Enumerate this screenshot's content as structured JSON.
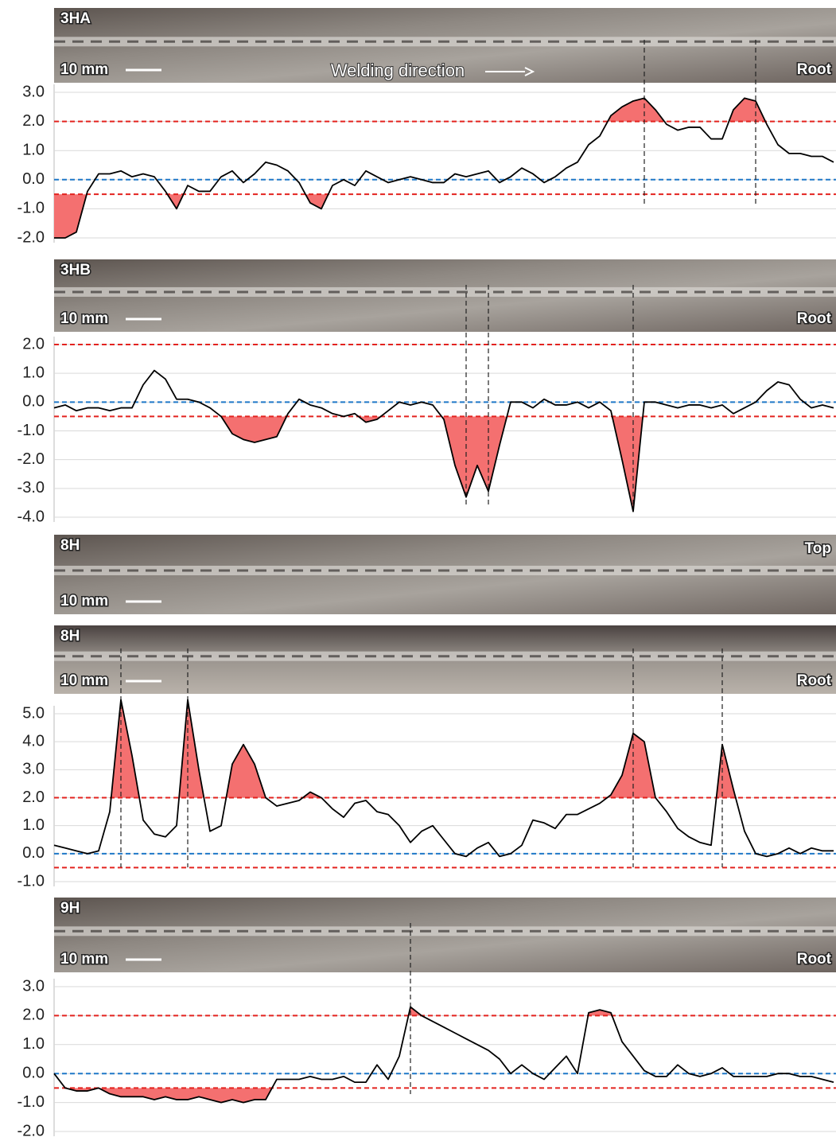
{
  "chart_data": [
    {
      "type": "line",
      "photos": [
        {
          "sample": "3HA",
          "scale_bar": "10 mm",
          "face": "Root",
          "annotation": "Welding direction"
        }
      ],
      "values": [
        -2.0,
        -2.0,
        -1.8,
        -0.4,
        0.2,
        0.2,
        0.3,
        0.1,
        0.2,
        0.1,
        -0.4,
        -1.0,
        -0.2,
        -0.4,
        -0.4,
        0.1,
        0.3,
        -0.1,
        0.2,
        0.6,
        0.5,
        0.3,
        -0.1,
        -0.8,
        -1.0,
        -0.2,
        0.0,
        -0.2,
        0.3,
        0.1,
        -0.1,
        0.0,
        0.1,
        0.0,
        -0.1,
        -0.1,
        0.2,
        0.1,
        0.2,
        0.3,
        -0.1,
        0.1,
        0.4,
        0.2,
        -0.1,
        0.1,
        0.4,
        0.6,
        1.2,
        1.5,
        2.2,
        2.5,
        2.7,
        2.8,
        2.4,
        1.9,
        1.7,
        1.8,
        1.8,
        1.4,
        1.4,
        2.4,
        2.8,
        2.7,
        1.9,
        1.2,
        0.9,
        0.9,
        0.8,
        0.8,
        0.6
      ],
      "color": "#000000",
      "fill_color": "#f47070",
      "ylim": [
        -2,
        3
      ],
      "yticks": [
        {
          "value": -2,
          "label": "-2.0"
        },
        {
          "value": -1,
          "label": "-1.0"
        },
        {
          "value": 0,
          "label": "0.0"
        },
        {
          "value": 1,
          "label": "1.0"
        },
        {
          "value": 2,
          "label": "2.0"
        },
        {
          "value": 3,
          "label": "3.0"
        }
      ],
      "grid": true,
      "thresholds": [
        {
          "value": 2,
          "color": "#e3231f"
        },
        {
          "value": -0.5,
          "color": "#e3231f"
        },
        {
          "value": 0,
          "color": "#1f78c8"
        }
      ],
      "markers": [
        53,
        63
      ]
    },
    {
      "type": "line",
      "photos": [
        {
          "sample": "3HB",
          "scale_bar": "10 mm",
          "face": "Root"
        }
      ],
      "values": [
        -0.2,
        -0.1,
        -0.3,
        -0.2,
        -0.2,
        -0.3,
        -0.2,
        -0.2,
        0.6,
        1.1,
        0.8,
        0.1,
        0.1,
        0.0,
        -0.2,
        -0.5,
        -1.1,
        -1.3,
        -1.4,
        -1.3,
        -1.2,
        -0.4,
        0.1,
        -0.1,
        -0.2,
        -0.4,
        -0.5,
        -0.4,
        -0.7,
        -0.6,
        -0.3,
        0.0,
        -0.1,
        0.0,
        -0.1,
        -0.6,
        -2.2,
        -3.3,
        -2.2,
        -3.1,
        -1.5,
        0.0,
        0.0,
        -0.2,
        0.1,
        -0.1,
        -0.1,
        0.0,
        -0.2,
        0.0,
        -0.3,
        -2.0,
        -3.8,
        0.0,
        0.0,
        -0.1,
        -0.2,
        -0.1,
        -0.1,
        -0.2,
        -0.1,
        -0.4,
        -0.2,
        0.0,
        0.4,
        0.7,
        0.6,
        0.1,
        -0.2,
        -0.1,
        -0.2
      ],
      "color": "#000000",
      "fill_color": "#f47070",
      "ylim": [
        -4,
        2
      ],
      "yticks": [
        {
          "value": -4,
          "label": "-4.0"
        },
        {
          "value": -3,
          "label": "-3.0"
        },
        {
          "value": -2,
          "label": "-2.0"
        },
        {
          "value": -1,
          "label": "-1.0"
        },
        {
          "value": 0,
          "label": "0.0"
        },
        {
          "value": 1,
          "label": "1.0"
        },
        {
          "value": 2,
          "label": "2.0"
        }
      ],
      "grid": true,
      "thresholds": [
        {
          "value": 2,
          "color": "#e3231f"
        },
        {
          "value": -0.5,
          "color": "#e3231f"
        },
        {
          "value": 0,
          "color": "#1f78c8"
        }
      ],
      "markers": [
        37,
        39,
        52
      ]
    },
    {
      "type": "line",
      "photos": [
        {
          "sample": "8H",
          "scale_bar": "10 mm",
          "face": "Top"
        },
        {
          "sample": "8H",
          "scale_bar": "10 mm",
          "face": "Root"
        }
      ],
      "values": [
        0.3,
        0.2,
        0.1,
        0.0,
        0.1,
        1.5,
        5.5,
        3.5,
        1.2,
        0.7,
        0.6,
        1.0,
        5.5,
        3.0,
        0.8,
        1.0,
        3.2,
        3.9,
        3.2,
        2.0,
        1.7,
        1.8,
        1.9,
        2.2,
        2.0,
        1.6,
        1.3,
        1.8,
        1.9,
        1.5,
        1.4,
        1.0,
        0.4,
        0.8,
        1.0,
        0.5,
        0.0,
        -0.1,
        0.2,
        0.4,
        -0.1,
        0.0,
        0.3,
        1.2,
        1.1,
        0.9,
        1.4,
        1.4,
        1.6,
        1.8,
        2.1,
        2.8,
        4.3,
        4.0,
        2.0,
        1.5,
        0.9,
        0.6,
        0.4,
        0.3,
        3.9,
        2.3,
        0.8,
        0.0,
        -0.1,
        0.0,
        0.2,
        0.0,
        0.2,
        0.1,
        0.1
      ],
      "color": "#000000",
      "fill_color": "#f47070",
      "ylim": [
        -1,
        5
      ],
      "yticks": [
        {
          "value": -1,
          "label": "-1.0"
        },
        {
          "value": 0,
          "label": "0.0"
        },
        {
          "value": 1,
          "label": "1.0"
        },
        {
          "value": 2,
          "label": "2.0"
        },
        {
          "value": 3,
          "label": "3.0"
        },
        {
          "value": 4,
          "label": "4.0"
        },
        {
          "value": 5,
          "label": "5.0"
        }
      ],
      "grid": true,
      "thresholds": [
        {
          "value": 2,
          "color": "#e3231f"
        },
        {
          "value": -0.5,
          "color": "#e3231f"
        },
        {
          "value": 0,
          "color": "#1f78c8"
        }
      ],
      "markers": [
        6,
        12,
        52,
        60
      ]
    },
    {
      "type": "line",
      "photos": [
        {
          "sample": "9H",
          "scale_bar": "10 mm",
          "face": "Root"
        }
      ],
      "values": [
        0.0,
        -0.5,
        -0.6,
        -0.6,
        -0.5,
        -0.7,
        -0.8,
        -0.8,
        -0.8,
        -0.9,
        -0.8,
        -0.9,
        -0.9,
        -0.8,
        -0.9,
        -1.0,
        -0.9,
        -1.0,
        -0.9,
        -0.9,
        -0.2,
        -0.2,
        -0.2,
        -0.1,
        -0.2,
        -0.2,
        -0.1,
        -0.3,
        -0.3,
        0.3,
        -0.2,
        0.6,
        2.3,
        2.0,
        1.8,
        1.6,
        1.4,
        1.2,
        1.0,
        0.8,
        0.5,
        0.0,
        0.3,
        0.0,
        -0.2,
        0.2,
        0.6,
        0.0,
        2.1,
        2.2,
        2.1,
        1.1,
        0.6,
        0.1,
        -0.1,
        -0.1,
        0.3,
        0.0,
        -0.1,
        0.0,
        0.2,
        -0.1,
        -0.1,
        -0.1,
        -0.1,
        0.0,
        0.0,
        -0.1,
        -0.1,
        -0.2,
        -0.3
      ],
      "color": "#000000",
      "fill_color": "#f47070",
      "ylim": [
        -2,
        3
      ],
      "yticks": [
        {
          "value": -2,
          "label": "-2.0"
        },
        {
          "value": -1,
          "label": "-1.0"
        },
        {
          "value": 0,
          "label": "0.0"
        },
        {
          "value": 1,
          "label": "1.0"
        },
        {
          "value": 2,
          "label": "2.0"
        },
        {
          "value": 3,
          "label": "3.0"
        }
      ],
      "grid": true,
      "thresholds": [
        {
          "value": 2,
          "color": "#e3231f"
        },
        {
          "value": -0.5,
          "color": "#e3231f"
        },
        {
          "value": 0,
          "color": "#1f78c8"
        }
      ],
      "markers": [
        32
      ]
    }
  ]
}
